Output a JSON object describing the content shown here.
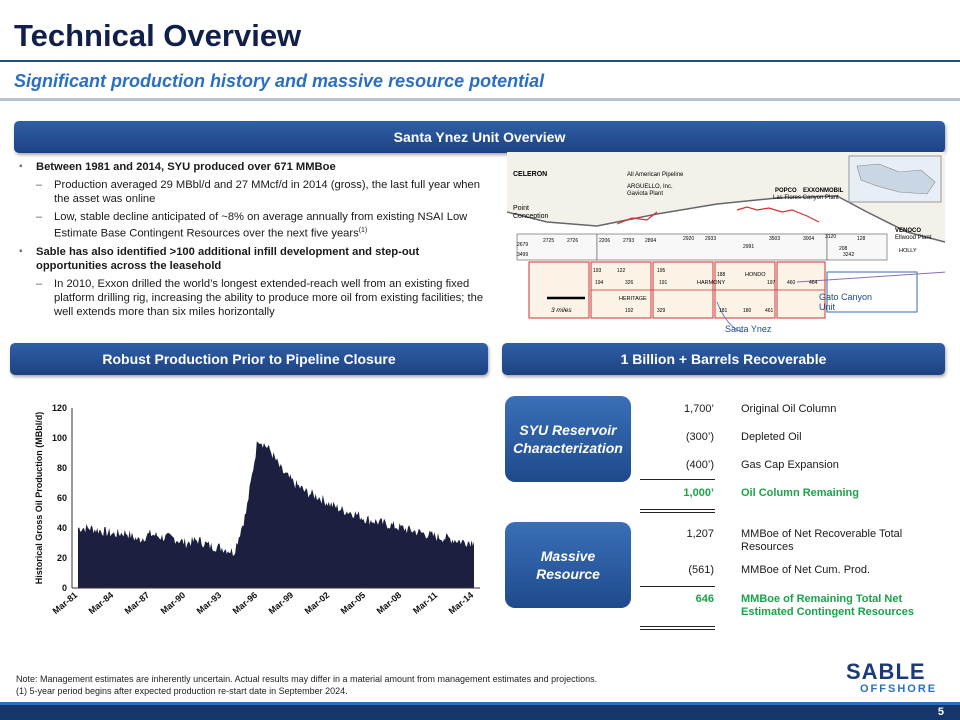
{
  "header": {
    "title": "Technical Overview",
    "subtitle": "Significant production history and massive resource potential"
  },
  "banners": {
    "overview": "Santa Ynez Unit Overview",
    "production": "Robust Production Prior to Pipeline Closure",
    "recoverable": "1 Billion + Barrels Recoverable"
  },
  "bullets": {
    "b1": "Between 1981 and 2014, SYU produced over 671 MMBoe",
    "b1_s1": "Production averaged 29 MBbl/d and 27 MMcf/d in 2014 (gross), the last full year when the asset was online",
    "b1_s2": "Low, stable decline anticipated of ~8% on average annually from existing NSAI Low Estimate Base Contingent Resources over the next five years",
    "b1_s2_sup": "(1)",
    "b2": "Sable has also identified >100 additional infill development and step-out opportunities across the leasehold",
    "b2_s1": "In 2010, Exxon drilled the world’s longest extended-reach well from an existing fixed platform drilling rig, increasing the ability to produce more oil from existing facilities; the well extends more than six miles horizontally"
  },
  "map": {
    "celeron": "CELERON",
    "celeron2": "All American Pipeline",
    "arguello": "ARGUELLO, Inc.",
    "arguello2": "Gaviota Plant",
    "popco": "POPCO",
    "exxon": "EXXONMOBIL",
    "lasflores": "Las Flores Canyon Plant",
    "venoco": "VENOCO",
    "venoco2": "Ellwood Plant",
    "pointconception": "Point",
    "pointconception2": "Conception",
    "hondo": "HONDO",
    "harmony": "HARMONY",
    "heritage": "HERITAGE",
    "holly": "HOLLY",
    "gato": "Gato Canyon",
    "gato2": "Unit",
    "santaynez": "Santa Ynez",
    "scale": "3 miles",
    "tracts": [
      "2679",
      "2725",
      "2726",
      "2206",
      "2793",
      "2894",
      "2920",
      "2933",
      "2991",
      "3503",
      "3004",
      "3120",
      "3242",
      "128",
      "208",
      "193",
      "122",
      "195",
      "194",
      "326",
      "191",
      "192",
      "329",
      "181",
      "180",
      "461",
      "188",
      "197",
      "460",
      "464",
      "3499"
    ]
  },
  "table": {
    "pill1": "SYU Reservoir Characterization",
    "pill2": "Massive Resource",
    "rows1": [
      {
        "num": "1,700’",
        "label": "Original Oil Column"
      },
      {
        "num": "(300’)",
        "label": "Depleted Oil"
      },
      {
        "num": "(400’)",
        "label": "Gas Cap Expansion"
      },
      {
        "num": "1,000’",
        "label": "Oil Column Remaining"
      }
    ],
    "rows2": [
      {
        "num": "1,207",
        "label": "MMBoe of Net Recoverable Total Resources"
      },
      {
        "num": "(561)",
        "label": "MMBoe of Net Cum. Prod."
      },
      {
        "num": "646",
        "label": "MMBoe of Remaining Total Net Estimated Contingent Resources"
      }
    ]
  },
  "chart_data": {
    "type": "area",
    "title": "",
    "xlabel": "",
    "ylabel": "Historical Gross Oil Production (MBbl/d)",
    "ylim": [
      0,
      120
    ],
    "yticks": [
      0,
      20,
      40,
      60,
      80,
      100,
      120
    ],
    "xticks": [
      "Mar-81",
      "Mar-84",
      "Mar-87",
      "Mar-90",
      "Mar-93",
      "Mar-96",
      "Mar-99",
      "Mar-02",
      "Mar-05",
      "Mar-08",
      "Mar-11",
      "Mar-14"
    ],
    "grid": false,
    "color": "#1c1f3f",
    "x": [
      "Mar-81",
      "Mar-82",
      "Mar-83",
      "Mar-84",
      "Mar-85",
      "Mar-86",
      "Mar-87",
      "Mar-88",
      "Mar-89",
      "Mar-90",
      "Mar-91",
      "Mar-92",
      "Mar-93",
      "Mar-94",
      "Mar-95",
      "Mar-96",
      "Mar-97",
      "Mar-98",
      "Mar-99",
      "Mar-00",
      "Mar-01",
      "Mar-02",
      "Mar-03",
      "Mar-04",
      "Mar-05",
      "Mar-06",
      "Mar-07",
      "Mar-08",
      "Mar-09",
      "Mar-10",
      "Mar-11",
      "Mar-12",
      "Mar-13",
      "Mar-14"
    ],
    "values": [
      40,
      40,
      38,
      36,
      37,
      32,
      36,
      34,
      33,
      30,
      32,
      28,
      27,
      24,
      50,
      100,
      92,
      78,
      70,
      64,
      61,
      56,
      52,
      50,
      46,
      44,
      42,
      40,
      38,
      36,
      34,
      33,
      31,
      31
    ]
  },
  "notes": {
    "line1": "Note: Management estimates are inherently uncertain. Actual results may differ in a material amount from management estimates and projections.",
    "line2": "(1)  5-year period begins after expected production re-start date in September 2024."
  },
  "logo": {
    "sable": "SABLE",
    "offshore": "OFFSHORE"
  },
  "page": "5"
}
